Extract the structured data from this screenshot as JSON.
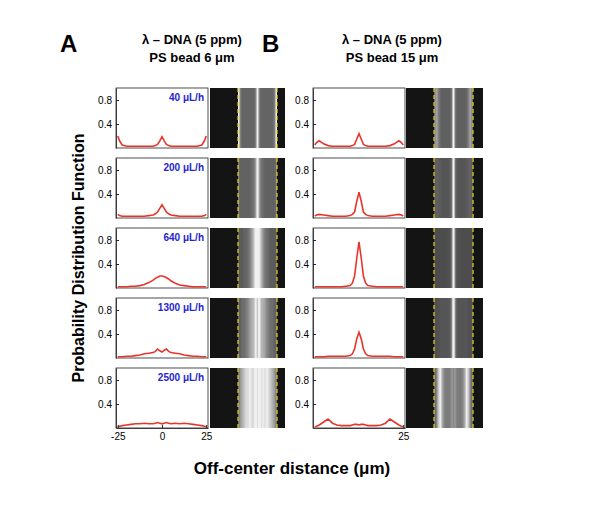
{
  "figure": {
    "panels": [
      {
        "label": "A",
        "title": [
          "λ – DNA (5 ppm)",
          "PS bead 6 μm"
        ]
      },
      {
        "label": "B",
        "title": [
          "λ – DNA (5 ppm)",
          "PS bead 15 μm"
        ]
      }
    ],
    "y_label": "Probability Distribution Function",
    "x_label": "Off-center distance (μm)"
  },
  "chart_data": [
    {
      "type": "line",
      "title": "40 μL/h",
      "x": [
        -25,
        -24,
        -22.5,
        -20,
        -17.5,
        -15,
        -12.5,
        -10,
        -7.5,
        -5,
        -3.75,
        -2.5,
        -1.25,
        0,
        1.25,
        2.5,
        3.75,
        5,
        7.5,
        10,
        12.5,
        15,
        17.5,
        20,
        22.5,
        24,
        25
      ],
      "values": [
        0.2,
        0.12,
        0.05,
        0.03,
        0.03,
        0.03,
        0.03,
        0.03,
        0.03,
        0.03,
        0.04,
        0.06,
        0.12,
        0.19,
        0.12,
        0.06,
        0.04,
        0.03,
        0.03,
        0.03,
        0.03,
        0.03,
        0.03,
        0.03,
        0.05,
        0.12,
        0.2
      ],
      "color": "#e8352b",
      "xlim": [
        -26,
        26
      ],
      "ylim": [
        0,
        1
      ],
      "yticks": [
        0.4,
        0.8
      ]
    },
    {
      "type": "line",
      "title": "200 μL/h",
      "x": [
        -25,
        -24,
        -22.5,
        -20,
        -17.5,
        -15,
        -12.5,
        -10,
        -7.5,
        -5,
        -3.75,
        -2.5,
        -1.25,
        0,
        1.25,
        2.5,
        3.75,
        5,
        7.5,
        10,
        12.5,
        15,
        17.5,
        20,
        22.5,
        24,
        25
      ],
      "values": [
        0.06,
        0.04,
        0.03,
        0.03,
        0.03,
        0.03,
        0.03,
        0.03,
        0.04,
        0.05,
        0.07,
        0.1,
        0.16,
        0.22,
        0.16,
        0.1,
        0.07,
        0.05,
        0.04,
        0.03,
        0.03,
        0.03,
        0.03,
        0.03,
        0.03,
        0.04,
        0.06
      ],
      "color": "#e8352b",
      "xlim": [
        -26,
        26
      ],
      "ylim": [
        0,
        1
      ],
      "yticks": [
        0.4,
        0.8
      ]
    },
    {
      "type": "line",
      "title": "640 μL/h",
      "x": [
        -25,
        -24,
        -22.5,
        -20,
        -17.5,
        -15,
        -12.5,
        -10,
        -7.5,
        -5,
        -3.75,
        -2.5,
        -1.25,
        0,
        1.25,
        2.5,
        3.75,
        5,
        7.5,
        10,
        12.5,
        15,
        17.5,
        20,
        22.5,
        24,
        25
      ],
      "values": [
        0.02,
        0.02,
        0.02,
        0.02,
        0.03,
        0.03,
        0.04,
        0.06,
        0.09,
        0.13,
        0.16,
        0.18,
        0.2,
        0.2,
        0.19,
        0.17,
        0.15,
        0.12,
        0.08,
        0.05,
        0.04,
        0.03,
        0.02,
        0.02,
        0.02,
        0.02,
        0.02
      ],
      "color": "#e8352b",
      "xlim": [
        -26,
        26
      ],
      "ylim": [
        0,
        1
      ],
      "yticks": [
        0.4,
        0.8
      ]
    },
    {
      "type": "line",
      "title": "1300 μL/h",
      "x": [
        -25,
        -24,
        -22.5,
        -20,
        -17.5,
        -15,
        -12.5,
        -10,
        -7.5,
        -5,
        -3.75,
        -2.5,
        -1.25,
        0,
        1.25,
        2.5,
        3.75,
        5,
        7.5,
        10,
        12.5,
        15,
        17.5,
        20,
        22.5,
        24,
        25
      ],
      "values": [
        0.02,
        0.02,
        0.02,
        0.03,
        0.03,
        0.04,
        0.05,
        0.07,
        0.08,
        0.09,
        0.11,
        0.15,
        0.12,
        0.1,
        0.13,
        0.15,
        0.11,
        0.09,
        0.08,
        0.07,
        0.05,
        0.04,
        0.03,
        0.03,
        0.02,
        0.02,
        0.02
      ],
      "color": "#e8352b",
      "xlim": [
        -26,
        26
      ],
      "ylim": [
        0,
        1
      ],
      "yticks": [
        0.4,
        0.8
      ]
    },
    {
      "type": "line",
      "title": "2500 μL/h",
      "x": [
        -25,
        -24,
        -22.5,
        -20,
        -17.5,
        -15,
        -12.5,
        -10,
        -7.5,
        -5,
        -3.75,
        -2.5,
        -1.25,
        0,
        1.25,
        2.5,
        3.75,
        5,
        7.5,
        10,
        12.5,
        15,
        17.5,
        20,
        22.5,
        24,
        25
      ],
      "values": [
        0.02,
        0.03,
        0.04,
        0.05,
        0.06,
        0.07,
        0.07,
        0.08,
        0.07,
        0.07,
        0.08,
        0.09,
        0.08,
        0.07,
        0.08,
        0.09,
        0.08,
        0.07,
        0.08,
        0.07,
        0.08,
        0.07,
        0.06,
        0.05,
        0.04,
        0.03,
        0.02
      ],
      "color": "#e8352b",
      "xlim": [
        -26,
        26
      ],
      "ylim": [
        0,
        1
      ],
      "yticks": [
        0.4,
        0.8
      ],
      "xticks": [
        -25,
        0,
        25
      ]
    },
    {
      "type": "line",
      "x": [
        -25,
        -24,
        -22.5,
        -20,
        -17.5,
        -15,
        -12.5,
        -10,
        -7.5,
        -5,
        -3.75,
        -2.5,
        -1.25,
        0,
        1.25,
        2.5,
        3.75,
        5,
        7.5,
        10,
        12.5,
        15,
        17.5,
        20,
        22.5,
        24,
        25
      ],
      "values": [
        0.05,
        0.09,
        0.12,
        0.07,
        0.04,
        0.03,
        0.03,
        0.03,
        0.03,
        0.03,
        0.04,
        0.06,
        0.15,
        0.24,
        0.15,
        0.06,
        0.04,
        0.03,
        0.03,
        0.03,
        0.03,
        0.03,
        0.04,
        0.07,
        0.12,
        0.09,
        0.05
      ],
      "color": "#e8352b",
      "xlim": [
        -26,
        26
      ],
      "ylim": [
        0,
        1
      ],
      "yticks": [
        0.4,
        0.8
      ]
    },
    {
      "type": "line",
      "x": [
        -25,
        -24,
        -22.5,
        -20,
        -17.5,
        -15,
        -12.5,
        -10,
        -7.5,
        -5,
        -3.75,
        -2.5,
        -1.25,
        0,
        1.25,
        2.5,
        3.75,
        5,
        7.5,
        10,
        12.5,
        15,
        17.5,
        20,
        22.5,
        24,
        25
      ],
      "values": [
        0.03,
        0.05,
        0.06,
        0.05,
        0.04,
        0.03,
        0.03,
        0.03,
        0.03,
        0.04,
        0.06,
        0.1,
        0.28,
        0.43,
        0.28,
        0.1,
        0.06,
        0.04,
        0.03,
        0.03,
        0.03,
        0.03,
        0.04,
        0.05,
        0.06,
        0.05,
        0.03
      ],
      "color": "#e8352b",
      "xlim": [
        -26,
        26
      ],
      "ylim": [
        0,
        1
      ],
      "yticks": [
        0.4,
        0.8
      ]
    },
    {
      "type": "line",
      "x": [
        -25,
        -24,
        -22.5,
        -20,
        -17.5,
        -15,
        -12.5,
        -10,
        -7.5,
        -5,
        -3.75,
        -2.5,
        -1.25,
        0,
        1.25,
        2.5,
        3.75,
        5,
        7.5,
        10,
        12.5,
        15,
        17.5,
        20,
        22.5,
        24,
        25
      ],
      "values": [
        0.02,
        0.02,
        0.02,
        0.02,
        0.02,
        0.02,
        0.02,
        0.02,
        0.03,
        0.04,
        0.08,
        0.2,
        0.5,
        0.77,
        0.5,
        0.2,
        0.08,
        0.04,
        0.03,
        0.02,
        0.02,
        0.02,
        0.02,
        0.02,
        0.02,
        0.02,
        0.02
      ],
      "color": "#e8352b",
      "xlim": [
        -26,
        26
      ],
      "ylim": [
        0,
        1
      ],
      "yticks": [
        0.4,
        0.8
      ]
    },
    {
      "type": "line",
      "x": [
        -25,
        -24,
        -22.5,
        -20,
        -17.5,
        -15,
        -12.5,
        -10,
        -7.5,
        -5,
        -3.75,
        -2.5,
        -1.25,
        0,
        1.25,
        2.5,
        3.75,
        5,
        7.5,
        10,
        12.5,
        15,
        17.5,
        20,
        22.5,
        24,
        25
      ],
      "values": [
        0.02,
        0.02,
        0.02,
        0.02,
        0.03,
        0.03,
        0.03,
        0.03,
        0.03,
        0.04,
        0.07,
        0.15,
        0.32,
        0.43,
        0.32,
        0.15,
        0.07,
        0.04,
        0.03,
        0.03,
        0.03,
        0.03,
        0.03,
        0.02,
        0.02,
        0.02,
        0.02
      ],
      "color": "#e8352b",
      "xlim": [
        -26,
        26
      ],
      "ylim": [
        0,
        1
      ],
      "yticks": [
        0.4,
        0.8
      ]
    },
    {
      "type": "line",
      "x": [
        -25,
        -24,
        -22.5,
        -20,
        -17.5,
        -15,
        -12.5,
        -10,
        -7.5,
        -5,
        -3.75,
        -2.5,
        -1.25,
        0,
        1.25,
        2.5,
        3.75,
        5,
        7.5,
        10,
        12.5,
        15,
        17.5,
        20,
        22.5,
        24,
        25
      ],
      "values": [
        0.02,
        0.03,
        0.05,
        0.1,
        0.15,
        0.08,
        0.05,
        0.04,
        0.04,
        0.04,
        0.05,
        0.06,
        0.06,
        0.05,
        0.06,
        0.06,
        0.05,
        0.04,
        0.04,
        0.04,
        0.05,
        0.08,
        0.15,
        0.1,
        0.05,
        0.03,
        0.02
      ],
      "color": "#e8352b",
      "xlim": [
        -26,
        26
      ],
      "ylim": [
        0,
        1
      ],
      "yticks": [
        0.4,
        0.8
      ],
      "xticks": [
        25
      ]
    }
  ]
}
